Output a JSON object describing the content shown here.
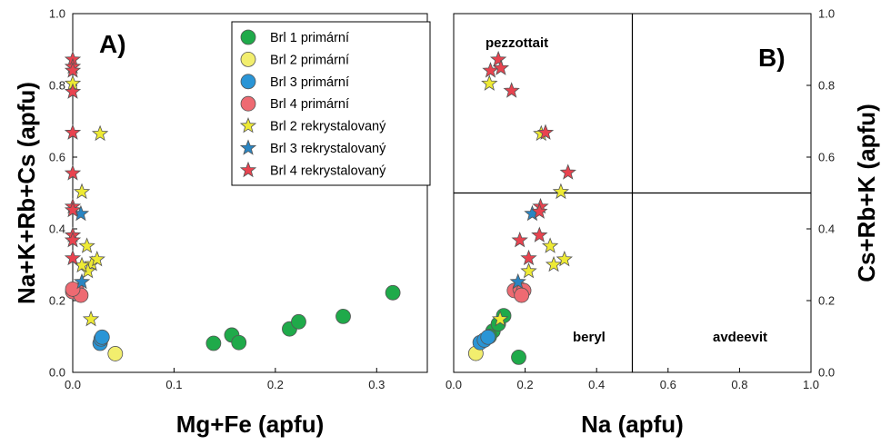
{
  "chart_data": [
    {
      "type": "scatter",
      "panel": "A)",
      "xlabel": "Mg+Fe (apfu)",
      "ylabel": "Na+K+Rb+Cs (apfu)",
      "xlim": [
        0,
        0.35
      ],
      "ylim": [
        0,
        1.0
      ],
      "xticks": [
        "0.0",
        "0.1",
        "0.2",
        "0.3"
      ],
      "yticks": [
        "0.0",
        "0.2",
        "0.4",
        "0.6",
        "0.8",
        "1.0"
      ],
      "legend": {
        "placement": "top-right"
      },
      "series": [
        {
          "name": "Brl 1 primární",
          "marker": "circle",
          "color": "#1faa4a",
          "points": [
            [
              0.139,
              0.081
            ],
            [
              0.157,
              0.104
            ],
            [
              0.164,
              0.083
            ],
            [
              0.214,
              0.121
            ],
            [
              0.223,
              0.141
            ],
            [
              0.267,
              0.156
            ],
            [
              0.316,
              0.222
            ]
          ]
        },
        {
          "name": "Brl 2 primární",
          "marker": "circle",
          "color": "#f2ee6e",
          "points": [
            [
              0.042,
              0.052
            ]
          ]
        },
        {
          "name": "Brl 3 primární",
          "marker": "circle",
          "color": "#2a95d6",
          "points": [
            [
              0.027,
              0.081
            ],
            [
              0.028,
              0.093
            ],
            [
              0.029,
              0.098
            ]
          ]
        },
        {
          "name": "Brl 4 primární",
          "marker": "circle",
          "color": "#ee6a72",
          "points": [
            [
              0.0,
              0.225
            ],
            [
              0.004,
              0.228
            ],
            [
              0.008,
              0.215
            ],
            [
              0.0,
              0.232
            ]
          ]
        },
        {
          "name": "Brl 2 rekrystalovaný",
          "marker": "star",
          "color": "#eeea34",
          "points": [
            [
              0.0,
              0.805
            ],
            [
              0.027,
              0.665
            ],
            [
              0.009,
              0.503
            ],
            [
              0.014,
              0.352
            ],
            [
              0.019,
              0.302
            ],
            [
              0.024,
              0.315
            ],
            [
              0.015,
              0.282
            ],
            [
              0.009,
              0.298
            ],
            [
              0.018,
              0.148
            ]
          ]
        },
        {
          "name": "Brl 3 rekrystalovaný",
          "marker": "star",
          "color": "#2a85c2",
          "points": [
            [
              0.008,
              0.442
            ],
            [
              0.009,
              0.252
            ]
          ]
        },
        {
          "name": "Brl 4 rekrystalovaný",
          "marker": "star",
          "color": "#e8434f",
          "points": [
            [
              0.0,
              0.872
            ],
            [
              0.0,
              0.852
            ],
            [
              0.0,
              0.841
            ],
            [
              0.0,
              0.782
            ],
            [
              0.0,
              0.668
            ],
            [
              0.0,
              0.555
            ],
            [
              0.0,
              0.462
            ],
            [
              0.0,
              0.452
            ],
            [
              0.0,
              0.382
            ],
            [
              0.0,
              0.368
            ],
            [
              0.0,
              0.318
            ]
          ]
        }
      ]
    },
    {
      "type": "scatter",
      "panel": "B)",
      "xlabel": "Na (apfu)",
      "ylabel": "Cs+Rb+K (apfu)",
      "xlim": [
        0,
        1.0
      ],
      "ylim": [
        0,
        1.0
      ],
      "xticks": [
        "0.0",
        "0.2",
        "0.4",
        "0.6",
        "0.8",
        "1.0"
      ],
      "yticks": [
        "0.0",
        "0.2",
        "0.4",
        "0.6",
        "0.8",
        "1.0"
      ],
      "dividers": {
        "x": 0.5,
        "y": 0.5
      },
      "regions": [
        "pezzottait",
        "beryl",
        "avdeevit"
      ],
      "series": [
        {
          "name": "Brl 1 primární",
          "marker": "circle",
          "color": "#1faa4a",
          "points": [
            [
              0.182,
              0.042
            ],
            [
              0.11,
              0.115
            ],
            [
              0.125,
              0.135
            ],
            [
              0.14,
              0.158
            ],
            [
              0.1,
              0.1
            ]
          ]
        },
        {
          "name": "Brl 2 primární",
          "marker": "circle",
          "color": "#f2ee6e",
          "points": [
            [
              0.062,
              0.053
            ]
          ]
        },
        {
          "name": "Brl 3 primární",
          "marker": "circle",
          "color": "#2a95d6",
          "points": [
            [
              0.074,
              0.083
            ],
            [
              0.086,
              0.09
            ],
            [
              0.096,
              0.098
            ]
          ]
        },
        {
          "name": "Brl 4 primární",
          "marker": "circle",
          "color": "#ee6a72",
          "points": [
            [
              0.17,
              0.228
            ],
            [
              0.186,
              0.232
            ],
            [
              0.196,
              0.228
            ],
            [
              0.19,
              0.215
            ]
          ]
        },
        {
          "name": "Brl 2 rekrystalovaný",
          "marker": "star",
          "color": "#eeea34",
          "points": [
            [
              0.1,
              0.805
            ],
            [
              0.245,
              0.665
            ],
            [
              0.3,
              0.503
            ],
            [
              0.27,
              0.352
            ],
            [
              0.31,
              0.315
            ],
            [
              0.28,
              0.3
            ],
            [
              0.21,
              0.282
            ],
            [
              0.13,
              0.148
            ]
          ]
        },
        {
          "name": "Brl 3 rekrystalovaný",
          "marker": "star",
          "color": "#2a85c2",
          "points": [
            [
              0.22,
              0.442
            ],
            [
              0.18,
              0.252
            ]
          ]
        },
        {
          "name": "Brl 4 rekrystalovaný",
          "marker": "star",
          "color": "#e8434f",
          "points": [
            [
              0.125,
              0.872
            ],
            [
              0.103,
              0.841
            ],
            [
              0.132,
              0.848
            ],
            [
              0.162,
              0.785
            ],
            [
              0.257,
              0.668
            ],
            [
              0.32,
              0.557
            ],
            [
              0.243,
              0.462
            ],
            [
              0.24,
              0.448
            ],
            [
              0.24,
              0.382
            ],
            [
              0.185,
              0.368
            ],
            [
              0.21,
              0.318
            ]
          ]
        }
      ]
    }
  ]
}
